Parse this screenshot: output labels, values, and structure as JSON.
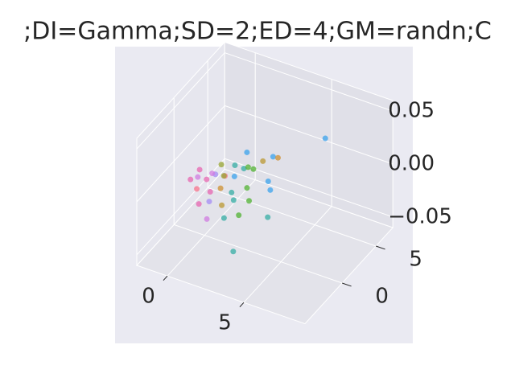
{
  "chart_data": {
    "type": "scatter3d",
    "title": ";DI=Gamma;SD=2;ED=4;GM=randn;C",
    "xlim": [
      -2,
      9
    ],
    "ylim": [
      -5.5,
      7.5
    ],
    "zlim": [
      -0.06,
      0.06
    ],
    "xticks": [
      0,
      5
    ],
    "yticks": [
      0,
      5
    ],
    "zticks": [
      {
        "value": -0.05,
        "label": "−0.05"
      },
      {
        "value": 0,
        "label": "0.00"
      },
      0.05
    ],
    "grid": true,
    "x": [
      -0.3,
      0.0,
      0.4,
      0.8,
      1.2,
      1.6,
      2.0,
      2.4,
      -0.1,
      0.5,
      1.0,
      1.5,
      2.1,
      2.8,
      3.2,
      0.2,
      0.9,
      1.4,
      1.9,
      2.6,
      3.5,
      0.6,
      1.1,
      1.7,
      2.3,
      3.0,
      3.9,
      1.3,
      2.2,
      2.9,
      0.7,
      1.8,
      3.3,
      4.0,
      5.2,
      3.6
    ],
    "y": [
      -1.4,
      -1.0,
      -0.6,
      -0.2,
      0.3,
      0.8,
      1.3,
      1.8,
      -0.5,
      0.0,
      0.6,
      1.1,
      1.7,
      2.3,
      2.9,
      -1.6,
      -1.2,
      -0.8,
      -0.3,
      0.4,
      1.5,
      -2.2,
      -1.8,
      -1.3,
      -0.9,
      -0.2,
      0.9,
      -2.6,
      -2.1,
      -1.5,
      0.9,
      2.2,
      3.4,
      0.3,
      6.1,
      -3.9
    ],
    "z": [
      0.001,
      0.002,
      -0.001,
      0.003,
      0.0,
      -0.002,
      0.004,
      0.002,
      0.005,
      0.001,
      -0.003,
      0.006,
      0.003,
      0.008,
      0.01,
      -0.004,
      -0.006,
      -0.003,
      -0.008,
      -0.005,
      -0.002,
      -0.012,
      -0.01,
      -0.014,
      -0.009,
      -0.011,
      -0.004,
      -0.02,
      -0.018,
      -0.016,
      0.004,
      0.012,
      0.006,
      -0.025,
      0.015,
      -0.03
    ],
    "colors": [
      "#e766b0",
      "#d07be0",
      "#e766b0",
      "#a48cf4",
      "#f77189",
      "#3ba3ec",
      "#36ada4",
      "#50b131",
      "#e766b0",
      "#d07be0",
      "#97a431",
      "#36ada4",
      "#50b131",
      "#bb9832",
      "#3ba3ec",
      "#f77189",
      "#e766b0",
      "#ce9032",
      "#36ada4",
      "#50b131",
      "#3ba3ec",
      "#e766b0",
      "#a48cf4",
      "#bb9832",
      "#36ada4",
      "#50b131",
      "#3ba3ec",
      "#d07be0",
      "#36ada4",
      "#50b131",
      "#97a431",
      "#3ba3ec",
      "#ce9032",
      "#36ada4",
      "#3ba3ec",
      "#36ada4"
    ]
  }
}
